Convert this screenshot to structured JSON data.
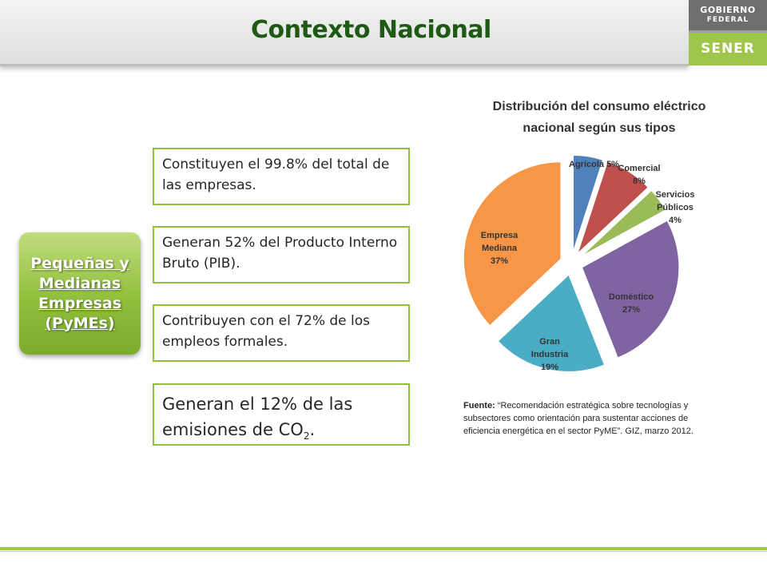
{
  "header": {
    "title": "Contexto Nacional"
  },
  "logo": {
    "line1": "GOBIERNO",
    "line2": "FEDERAL",
    "brand": "SENER"
  },
  "pyme_box": {
    "label": "Pequeñas y\nMedianas\nEmpresas\n(PyMEs)"
  },
  "facts": [
    {
      "text": "Constituyen el 99.8% del total de las empresas."
    },
    {
      "text": "Generan 52% del Producto Interno Bruto (PIB)."
    },
    {
      "text": "Contribuyen con el 72% de los empleos formales."
    },
    {
      "text_before": "Generan el 12% de las emisiones de CO",
      "subscript": "2",
      "text_after": "."
    }
  ],
  "chart_data": {
    "type": "pie",
    "title": "Distribución del consumo eléctrico\nnacional según sus tipos",
    "slices": [
      {
        "label": "Agrícola",
        "value": 5,
        "value_label": "5%",
        "color": "#4f81bd"
      },
      {
        "label": "Comercial",
        "value": 8,
        "value_label": "8%",
        "color": "#c0504d"
      },
      {
        "label": "Servicios Públicos",
        "value": 4,
        "value_label": "4%",
        "color": "#9bbb59"
      },
      {
        "label": "Doméstico",
        "value": 27,
        "value_label": "27%",
        "color": "#8064a2"
      },
      {
        "label": "Gran Industria",
        "value": 19,
        "value_label": "19%",
        "color": "#4bacc6"
      },
      {
        "label": "Empresa Mediana",
        "value": 37,
        "value_label": "37%",
        "color": "#f79646"
      }
    ],
    "exploded": true
  },
  "source": {
    "label": "Fuente:",
    "text": "“Recomendación estratégica sobre tecnologías y subsectores como orientación para sustentar acciones de eficiencia energética en el sector PyME”. GIZ,  marzo 2012."
  },
  "colors": {
    "accent_green": "#9fc54a",
    "title_green": "#1f5a14"
  }
}
